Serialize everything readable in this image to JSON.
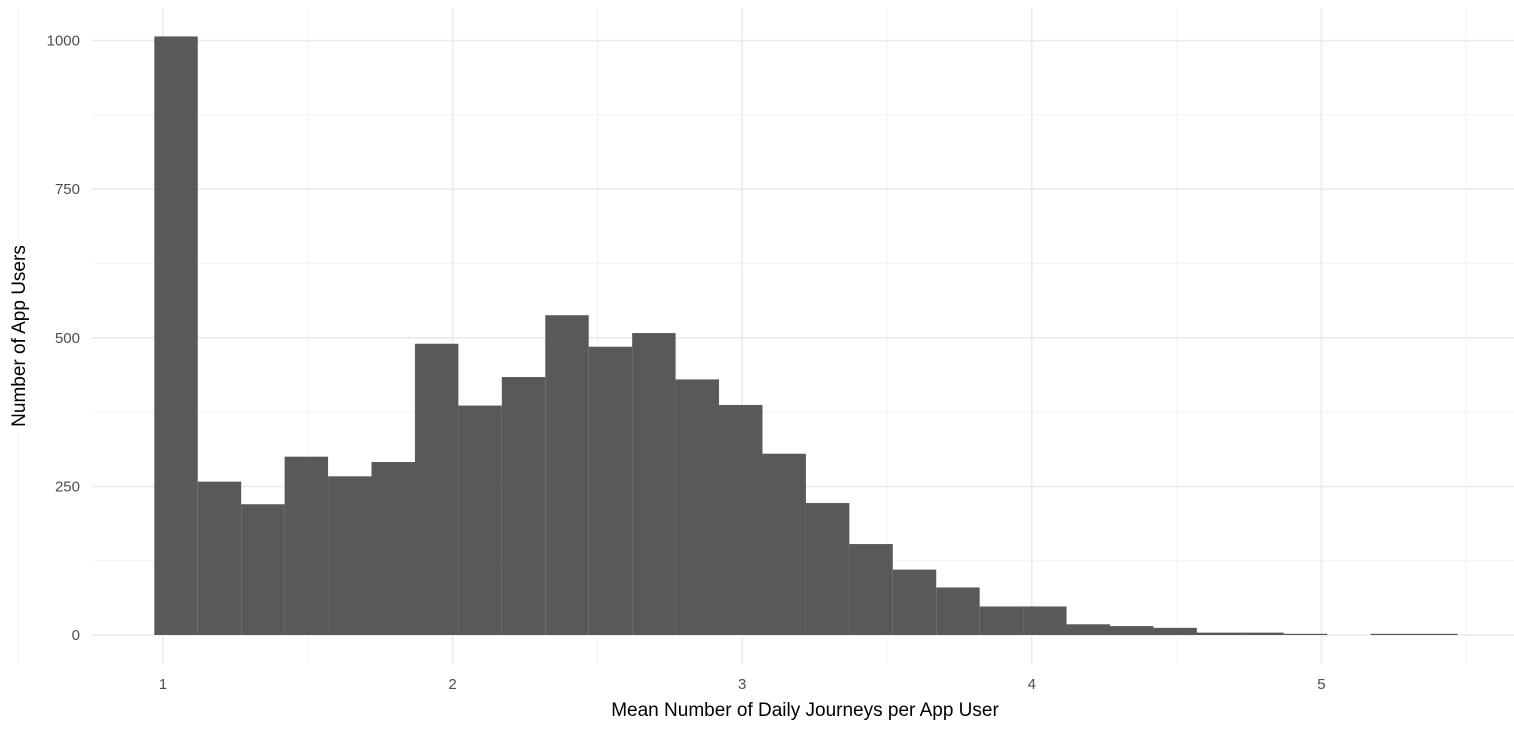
{
  "colors": {
    "bar_fill": "#595959",
    "grid_major": "#ebebeb",
    "grid_minor": "#f5f5f5",
    "tick_text": "#4d4d4d",
    "axis_title_text": "#000000",
    "background": "#ffffff"
  },
  "chart_data": {
    "type": "bar",
    "subtype": "histogram",
    "title": "",
    "xlabel": "Mean Number of Daily Journeys per App User",
    "ylabel": "Number of App Users",
    "xlim": [
      0.75,
      5.65
    ],
    "ylim": [
      0,
      1010
    ],
    "grid": true,
    "legend": "none",
    "bin_width": 0.15,
    "x_ticks": [
      1,
      2,
      3,
      4,
      5
    ],
    "x_tick_labels": [
      "1",
      "2",
      "3",
      "4",
      "5"
    ],
    "y_ticks": [
      0,
      250,
      500,
      750,
      1000
    ],
    "y_tick_labels": [
      "0",
      "250",
      "500",
      "750",
      "1000"
    ],
    "bins": [
      {
        "start": 0.97,
        "end": 1.12,
        "count": 1007
      },
      {
        "start": 1.12,
        "end": 1.27,
        "count": 258
      },
      {
        "start": 1.27,
        "end": 1.42,
        "count": 220
      },
      {
        "start": 1.42,
        "end": 1.57,
        "count": 300
      },
      {
        "start": 1.57,
        "end": 1.72,
        "count": 267
      },
      {
        "start": 1.72,
        "end": 1.87,
        "count": 291
      },
      {
        "start": 1.87,
        "end": 2.02,
        "count": 490
      },
      {
        "start": 2.02,
        "end": 2.17,
        "count": 386
      },
      {
        "start": 2.17,
        "end": 2.32,
        "count": 434
      },
      {
        "start": 2.32,
        "end": 2.47,
        "count": 538
      },
      {
        "start": 2.47,
        "end": 2.62,
        "count": 485
      },
      {
        "start": 2.62,
        "end": 2.77,
        "count": 508
      },
      {
        "start": 2.77,
        "end": 2.92,
        "count": 430
      },
      {
        "start": 2.92,
        "end": 3.07,
        "count": 387
      },
      {
        "start": 3.07,
        "end": 3.22,
        "count": 305
      },
      {
        "start": 3.22,
        "end": 3.37,
        "count": 222
      },
      {
        "start": 3.37,
        "end": 3.52,
        "count": 153
      },
      {
        "start": 3.52,
        "end": 3.67,
        "count": 110
      },
      {
        "start": 3.67,
        "end": 3.82,
        "count": 80
      },
      {
        "start": 3.82,
        "end": 3.97,
        "count": 48
      },
      {
        "start": 3.97,
        "end": 4.12,
        "count": 48
      },
      {
        "start": 4.12,
        "end": 4.27,
        "count": 18
      },
      {
        "start": 4.27,
        "end": 4.42,
        "count": 15
      },
      {
        "start": 4.42,
        "end": 4.57,
        "count": 12
      },
      {
        "start": 4.57,
        "end": 4.72,
        "count": 4
      },
      {
        "start": 4.72,
        "end": 4.87,
        "count": 4
      },
      {
        "start": 4.87,
        "end": 5.02,
        "count": 2
      },
      {
        "start": 5.02,
        "end": 5.17,
        "count": 0
      },
      {
        "start": 5.17,
        "end": 5.32,
        "count": 1
      },
      {
        "start": 5.32,
        "end": 5.47,
        "count": 1
      }
    ]
  }
}
